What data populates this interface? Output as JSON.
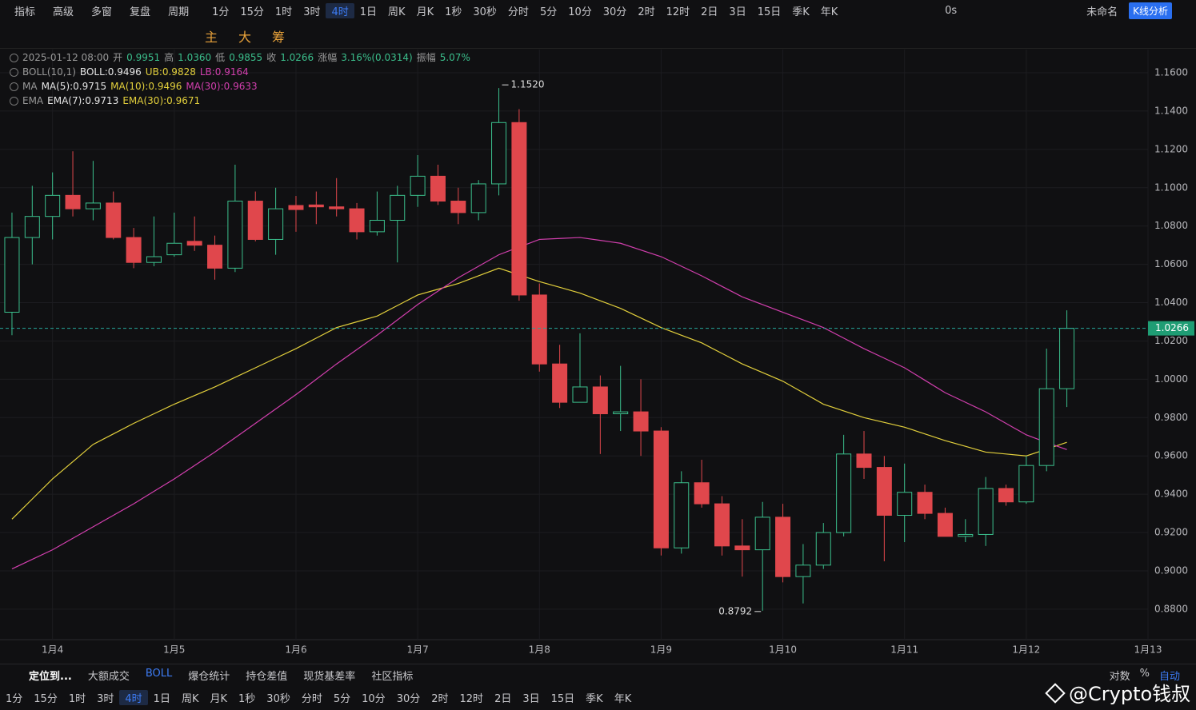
{
  "toolbar": {
    "left": [
      "指标",
      "高级",
      "多窗",
      "复盘",
      "周期"
    ],
    "periods": [
      "1分",
      "15分",
      "1时",
      "3时",
      "4时",
      "1日",
      "周K",
      "月K",
      "1秒",
      "30秒",
      "分时",
      "5分",
      "10分",
      "30分",
      "2时",
      "12时",
      "2日",
      "3日",
      "15日",
      "季K",
      "年K"
    ],
    "active_period": "4时",
    "delay": "0s",
    "layout_name": "未命名",
    "analysis_button": "K线分析"
  },
  "chart_tools": [
    "主",
    "大",
    "筹"
  ],
  "legend": {
    "time": "2025-01-12 08:00",
    "ohlc": [
      {
        "label": "开",
        "value": "0.9951"
      },
      {
        "label": "高",
        "value": "1.0360"
      },
      {
        "label": "低",
        "value": "0.9855"
      },
      {
        "label": "收",
        "value": "1.0266"
      }
    ],
    "change": {
      "label": "涨幅",
      "value": "3.16%(0.0314)"
    },
    "amplitude": {
      "label": "振幅",
      "value": "5.07%"
    },
    "indicators": [
      {
        "name": "BOLL(10,1)",
        "items": [
          "BOLL:0.9496",
          "UB:0.9828",
          "LB:0.9164"
        ]
      },
      {
        "name": "MA",
        "items": [
          "MA(5):0.9715",
          "MA(10):0.9496",
          "MA(30):0.9633"
        ]
      },
      {
        "name": "EMA",
        "items": [
          "EMA(7):0.9713",
          "EMA(30):0.9671"
        ]
      }
    ]
  },
  "chart_data": {
    "type": "candlestick",
    "open": [
      1.035,
      1.074,
      1.085,
      1.096,
      1.089,
      1.092,
      1.074,
      1.061,
      1.065,
      1.072,
      1.07,
      1.058,
      1.093,
      1.073,
      1.0907,
      1.091,
      1.09,
      1.089,
      1.077,
      1.083,
      1.096,
      1.106,
      1.093,
      1.087,
      1.102,
      1.134,
      1.044,
      1.008,
      0.988,
      0.996,
      0.982,
      0.983,
      0.973,
      0.912,
      0.946,
      0.935,
      0.913,
      0.911,
      0.928,
      0.897,
      0.903,
      0.92,
      0.961,
      0.954,
      0.929,
      0.941,
      0.93,
      0.918,
      0.919,
      0.943,
      0.936,
      0.955,
      0.9951
    ],
    "high": [
      1.087,
      1.101,
      1.108,
      1.119,
      1.114,
      1.098,
      1.079,
      1.085,
      1.087,
      1.085,
      1.075,
      1.112,
      1.098,
      1.1,
      1.0957,
      1.098,
      1.105,
      1.092,
      1.098,
      1.101,
      1.117,
      1.112,
      1.1,
      1.104,
      1.152,
      1.141,
      1.05,
      1.018,
      1.024,
      1.002,
      1.007,
      1.0,
      0.975,
      0.952,
      0.958,
      0.939,
      0.927,
      0.936,
      0.935,
      0.914,
      0.925,
      0.971,
      0.973,
      0.96,
      0.956,
      0.945,
      0.933,
      0.927,
      0.949,
      0.945,
      0.96,
      1.016,
      1.036
    ],
    "low": [
      1.023,
      1.06,
      1.073,
      1.085,
      1.083,
      1.073,
      1.058,
      1.059,
      1.064,
      1.067,
      1.052,
      1.056,
      1.072,
      1.065,
      1.077,
      1.081,
      1.085,
      1.073,
      1.075,
      1.061,
      1.09,
      1.091,
      1.081,
      1.083,
      1.096,
      1.041,
      1.004,
      0.985,
      0.988,
      0.961,
      0.973,
      0.96,
      0.908,
      0.909,
      0.933,
      0.908,
      0.897,
      0.8792,
      0.894,
      0.883,
      0.901,
      0.918,
      0.948,
      0.905,
      0.915,
      0.927,
      0.918,
      0.915,
      0.913,
      0.934,
      0.935,
      0.952,
      0.9855
    ],
    "close": [
      1.074,
      1.085,
      1.096,
      1.089,
      1.092,
      1.074,
      1.061,
      1.064,
      1.071,
      1.07,
      1.058,
      1.093,
      1.073,
      1.089,
      1.0886,
      1.09,
      1.089,
      1.077,
      1.083,
      1.096,
      1.106,
      1.093,
      1.087,
      1.102,
      1.134,
      1.044,
      1.008,
      0.988,
      0.996,
      0.982,
      0.983,
      0.973,
      0.912,
      0.946,
      0.935,
      0.913,
      0.911,
      0.928,
      0.897,
      0.903,
      0.92,
      0.961,
      0.954,
      0.929,
      0.941,
      0.93,
      0.918,
      0.919,
      0.943,
      0.936,
      0.955,
      0.9951,
      1.0266
    ],
    "up_color": "#3bbf8c",
    "down_color": "#e0474c",
    "series": [
      {
        "name": "EMA(30)",
        "color": "#e3d03c",
        "values": [
          0.927,
          0.9375,
          0.948,
          0.957,
          0.966,
          0.9715,
          0.977,
          0.982,
          0.987,
          0.9915,
          0.996,
          1.001,
          1.006,
          1.011,
          1.016,
          1.0215,
          1.027,
          1.03,
          1.033,
          1.0385,
          1.044,
          1.047,
          1.05,
          1.054,
          1.058,
          1.0545,
          1.051,
          1.048,
          1.045,
          1.041,
          1.037,
          1.032,
          1.027,
          1.023,
          1.019,
          1.0135,
          1.008,
          1.0035,
          0.999,
          0.993,
          0.987,
          0.9835,
          0.98,
          0.9775,
          0.975,
          0.9715,
          0.968,
          0.965,
          0.962,
          0.961,
          0.96,
          0.9635,
          0.9671
        ]
      },
      {
        "name": "MA(30)",
        "color": "#d23fae",
        "values": [
          0.901,
          0.906,
          0.911,
          0.917,
          0.923,
          0.929,
          0.935,
          0.9415,
          0.948,
          0.955,
          0.962,
          0.9695,
          0.977,
          0.9845,
          0.992,
          1.0,
          1.008,
          1.0155,
          1.023,
          1.031,
          1.039,
          1.046,
          1.053,
          1.059,
          1.065,
          1.069,
          1.073,
          1.0735,
          1.074,
          1.0725,
          1.071,
          1.0675,
          1.064,
          1.059,
          1.054,
          1.0485,
          1.043,
          1.039,
          1.035,
          1.031,
          1.027,
          1.0215,
          1.016,
          1.011,
          1.006,
          0.9995,
          0.993,
          0.988,
          0.983,
          0.977,
          0.971,
          0.967,
          0.9633
        ]
      }
    ],
    "ylim": [
      0.8641,
      1.1721
    ],
    "yticks": [
      {
        "value": 1.16,
        "label": "1.1600"
      },
      {
        "value": 1.14,
        "label": "1.1400"
      },
      {
        "value": 1.12,
        "label": "1.1200"
      },
      {
        "value": 1.1,
        "label": "1.1000"
      },
      {
        "value": 1.08,
        "label": "1.0800"
      },
      {
        "value": 1.06,
        "label": "1.0600"
      },
      {
        "value": 1.04,
        "label": "1.0400"
      },
      {
        "value": 1.02,
        "label": "1.0200"
      },
      {
        "value": 1.0,
        "label": "1.0000"
      },
      {
        "value": 0.98,
        "label": "0.9800"
      },
      {
        "value": 0.96,
        "label": "0.9600"
      },
      {
        "value": 0.94,
        "label": "0.9400"
      },
      {
        "value": 0.92,
        "label": "0.9200"
      },
      {
        "value": 0.9,
        "label": "0.9000"
      },
      {
        "value": 0.88,
        "label": "0.8800"
      }
    ],
    "xlim": [
      -0.59,
      56
    ],
    "xticks": [
      {
        "value": 2,
        "label": "1月4"
      },
      {
        "value": 8,
        "label": "1月5"
      },
      {
        "value": 14,
        "label": "1月6"
      },
      {
        "value": 20,
        "label": "1月7"
      },
      {
        "value": 26,
        "label": "1月8"
      },
      {
        "value": 32,
        "label": "1月9"
      },
      {
        "value": 38,
        "label": "1月10"
      },
      {
        "value": 44,
        "label": "1月11"
      },
      {
        "value": 50,
        "label": "1月12"
      },
      {
        "value": 56,
        "label": "1月13"
      }
    ],
    "last_price": {
      "value": 1.0266,
      "label": "1.0266"
    },
    "annotations": [
      {
        "index": 24,
        "value": 1.152,
        "label": "1.1520"
      },
      {
        "index": 37,
        "value": 0.8792,
        "label": "0.8792"
      }
    ],
    "grid": true
  },
  "bottom_bar": {
    "left": [
      "定位到...",
      "大额成交",
      "BOLL",
      "爆仓统计",
      "持仓差值",
      "现货基差率",
      "社区指标"
    ],
    "right": [
      "对数",
      "%",
      "自动"
    ]
  },
  "watermark": "@Crypto钱叔"
}
